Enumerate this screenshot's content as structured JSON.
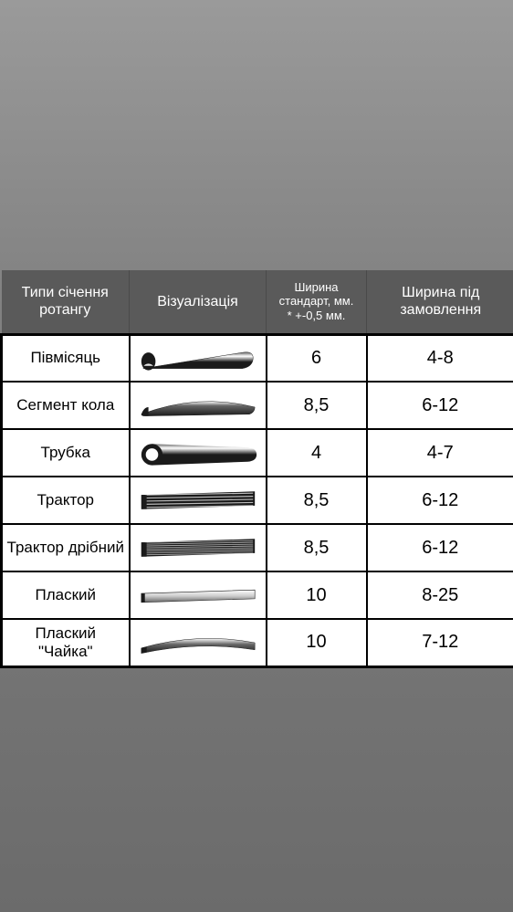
{
  "table": {
    "header_bg": "#5a5a5a",
    "header_text_color": "#ffffff",
    "cell_bg": "#ffffff",
    "cell_border": "#000000",
    "columns": [
      {
        "label": "Типи січення\nротангу",
        "size": "normal"
      },
      {
        "label": "Візуалізація",
        "size": "normal"
      },
      {
        "label": "Ширина\nстандарт, мм.\n* +-0,5 мм.",
        "size": "small"
      },
      {
        "label": "Ширина під замовлення",
        "size": "normal"
      }
    ],
    "rows": [
      {
        "name": "Півмісяць",
        "profile": "halfmoon",
        "std_width": "6",
        "order_width": "4-8"
      },
      {
        "name": "Сегмент кола",
        "profile": "segment",
        "std_width": "8,5",
        "order_width": "6-12"
      },
      {
        "name": "Трубка",
        "profile": "tube",
        "std_width": "4",
        "order_width": "4-7"
      },
      {
        "name": "Трактор",
        "profile": "tractor",
        "std_width": "8,5",
        "order_width": "6-12"
      },
      {
        "name": "Трактор дрібний",
        "profile": "tractor_fine",
        "std_width": "8,5",
        "order_width": "6-12"
      },
      {
        "name": "Плаский",
        "profile": "flat",
        "std_width": "10",
        "order_width": "8-25"
      },
      {
        "name": "Плаский \"Чайка\"",
        "profile": "flat_gull",
        "std_width": "10",
        "order_width": "7-12"
      }
    ]
  },
  "profile_colors": {
    "fill": "#1a1a1a",
    "highlight": "#ffffff",
    "mid": "#666666"
  }
}
